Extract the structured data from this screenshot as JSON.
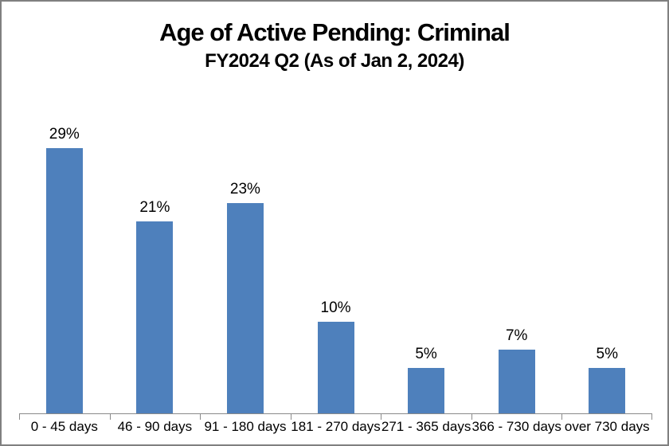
{
  "window": {
    "border_color": "#808080",
    "background_color": "#ffffff"
  },
  "chart": {
    "title": "Age of Active Pending: Criminal",
    "subtitle": "FY2024 Q2 (As of Jan 2, 2024)"
  },
  "chart_data": {
    "type": "bar",
    "title": "Age of Active Pending: Criminal",
    "subtitle": "FY2024 Q2 (As of Jan 2, 2024)",
    "categories": [
      "0 - 45 days",
      "46 - 90 days",
      "91 - 180 days",
      "181 - 270 days",
      "271 - 365 days",
      "366 - 730 days",
      "over 730 days"
    ],
    "values": [
      29,
      21,
      23,
      10,
      5,
      7,
      5
    ],
    "data_labels": [
      "29%",
      "21%",
      "23%",
      "10%",
      "5%",
      "7%",
      "5%"
    ],
    "xlabel": "",
    "ylabel": "",
    "ylim": [
      0,
      35
    ],
    "y_axis_visible": false,
    "gridlines": false,
    "legend": "none",
    "bar_color": "#4e80bc",
    "axis_color": "#8a8a8a",
    "label_color": "#000000",
    "tick_marks": "outside, at category boundaries"
  }
}
